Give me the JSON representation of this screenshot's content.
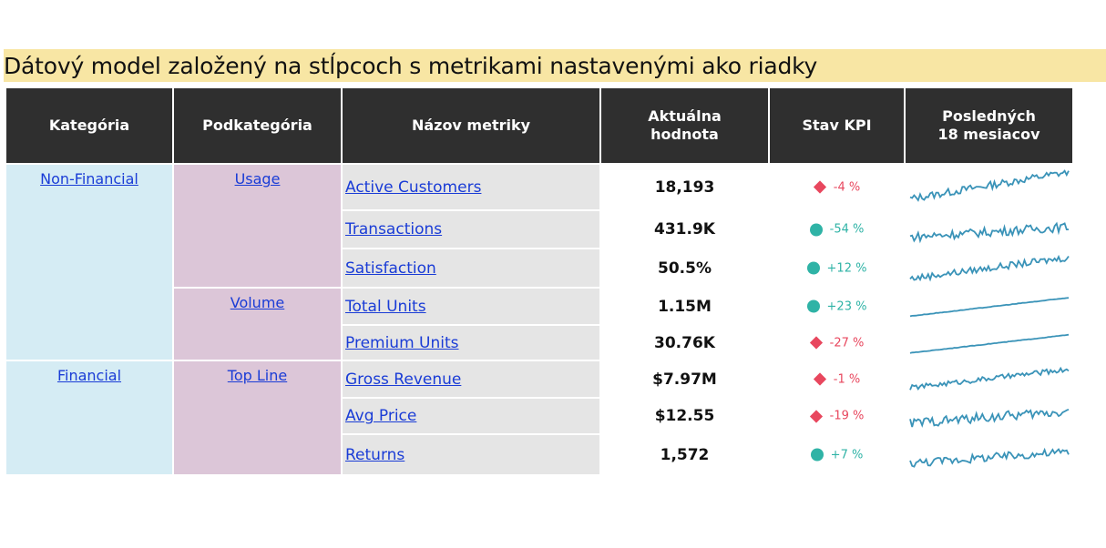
{
  "title": "Dátový model založený na stĺpcoch s metrikami nastavenými ako riadky",
  "headers": {
    "category": "Kategória",
    "subcategory": "Podkategória",
    "metric_name": "Názov metriky",
    "current_value": "Aktuálna\nhodnota",
    "kpi_status": "Stav KPI",
    "last_18_months": "Posledných\n18 mesiacov"
  },
  "categories": [
    "Non-Financial",
    "Financial"
  ],
  "subcategories": [
    "Usage",
    "Volume",
    "Top Line"
  ],
  "rows": [
    {
      "metric": "Active Customers",
      "value": "18,193",
      "kpi_text": "-4 %",
      "kpi_status": "bad"
    },
    {
      "metric": "Transactions",
      "value": "431.9K",
      "kpi_text": "-54 %",
      "kpi_status": "good"
    },
    {
      "metric": "Satisfaction",
      "value": "50.5%",
      "kpi_text": "+12 %",
      "kpi_status": "good"
    },
    {
      "metric": "Total Units",
      "value": "1.15M",
      "kpi_text": "+23 %",
      "kpi_status": "good"
    },
    {
      "metric": "Premium Units",
      "value": "30.76K",
      "kpi_text": "-27 %",
      "kpi_status": "bad"
    },
    {
      "metric": "Gross Revenue",
      "value": "$7.97M",
      "kpi_text": "-1 %",
      "kpi_status": "bad"
    },
    {
      "metric": "Avg Price",
      "value": "$12.55",
      "kpi_text": "-19 %",
      "kpi_status": "bad"
    },
    {
      "metric": "Returns",
      "value": "1,572",
      "kpi_text": "+7 %",
      "kpi_status": "good"
    }
  ],
  "colors": {
    "title_bg": "#f8e6a4",
    "header_bg": "#2f2f2f",
    "category_bg": "#d5ecf4",
    "subcategory_bg": "#dcc6d8",
    "metric_bg": "#e5e5e5",
    "link": "#1a3cd6",
    "kpi_good": "#2fb3a6",
    "kpi_bad": "#e8475e",
    "sparkline": "#3a93b8"
  },
  "icons": {
    "good": "circle-icon",
    "bad": "diamond-icon"
  }
}
